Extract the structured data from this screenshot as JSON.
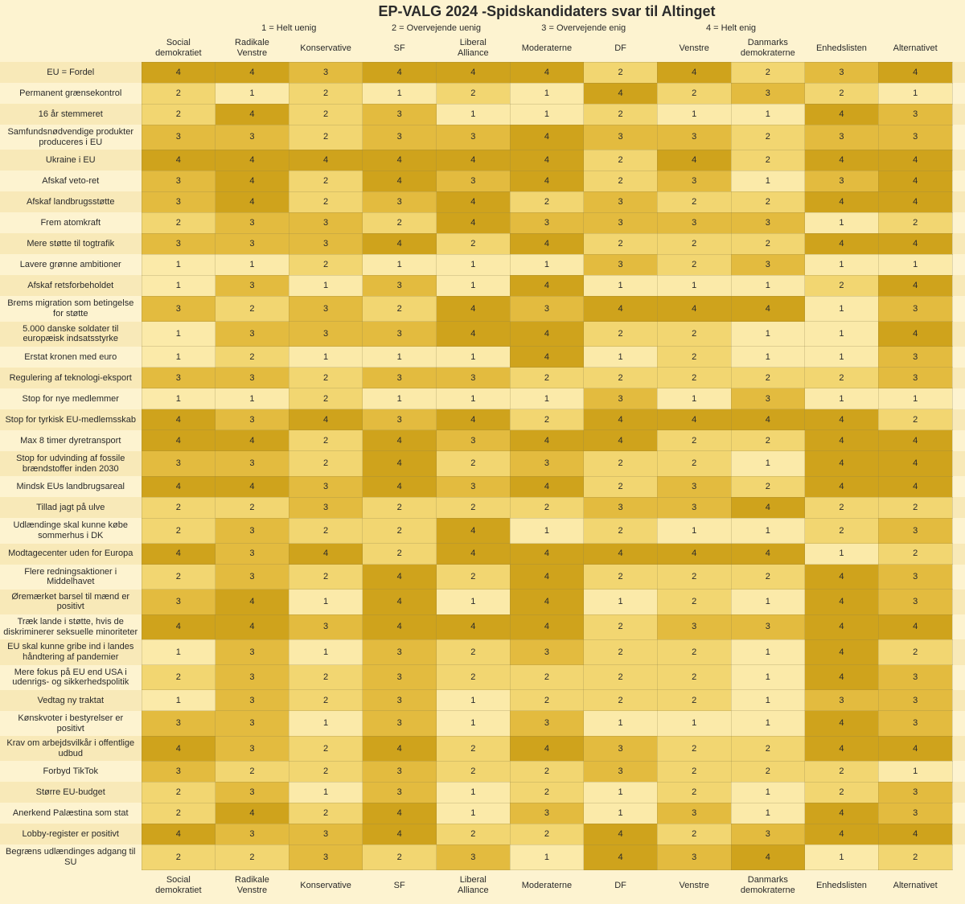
{
  "title": "EP-VALG 2024 -Spidskandidaters svar til Altinget",
  "scale_labels": {
    "s1": "1 = Helt uenig",
    "s2": "2 = Overvejende uenig",
    "s3": "3 = Overvejende enig",
    "s4": "4 = Helt enig"
  },
  "colors": {
    "background": "#fdf3d0",
    "heat": {
      "1": "#fbeaa9",
      "2": "#f2d671",
      "3": "#e3bb3f",
      "4": "#cfa31c"
    },
    "stripe_even": "#fdf3d0",
    "stripe_odd": "#f8e9b8",
    "border": "rgba(139,129,76,0.25)"
  },
  "parties": [
    "Social demokratiet",
    "Radikale Venstre",
    "Konservative",
    "SF",
    "Liberal Alliance",
    "Moderaterne",
    "DF",
    "Venstre",
    "Danmarks demokraterne",
    "Enhedslisten",
    "Alternativet"
  ],
  "questions": [
    {
      "label": "EU = Fordel",
      "v": [
        4,
        4,
        3,
        4,
        4,
        4,
        2,
        4,
        2,
        3,
        4
      ]
    },
    {
      "label": "Permanent grænsekontrol",
      "v": [
        2,
        1,
        2,
        1,
        2,
        1,
        4,
        2,
        3,
        2,
        1
      ]
    },
    {
      "label": "16 år stemmeret",
      "v": [
        2,
        4,
        2,
        3,
        1,
        1,
        2,
        1,
        1,
        4,
        3
      ]
    },
    {
      "label": "Samfundsnødvendige produkter produceres i EU",
      "v": [
        3,
        3,
        2,
        3,
        3,
        4,
        3,
        3,
        2,
        3,
        3
      ]
    },
    {
      "label": "Ukraine i EU",
      "v": [
        4,
        4,
        4,
        4,
        4,
        4,
        2,
        4,
        2,
        4,
        4
      ]
    },
    {
      "label": "Afskaf veto-ret",
      "v": [
        3,
        4,
        2,
        4,
        3,
        4,
        2,
        3,
        1,
        3,
        4
      ]
    },
    {
      "label": "Afskaf landbrugsstøtte",
      "v": [
        3,
        4,
        2,
        3,
        4,
        2,
        3,
        2,
        2,
        4,
        4
      ]
    },
    {
      "label": "Frem atomkraft",
      "v": [
        2,
        3,
        3,
        2,
        4,
        3,
        3,
        3,
        3,
        1,
        2
      ]
    },
    {
      "label": "Mere støtte til togtrafik",
      "v": [
        3,
        3,
        3,
        4,
        2,
        4,
        2,
        2,
        2,
        4,
        4
      ]
    },
    {
      "label": "Lavere grønne ambitioner",
      "v": [
        1,
        1,
        2,
        1,
        1,
        1,
        3,
        2,
        3,
        1,
        1
      ]
    },
    {
      "label": "Afskaf retsforbeholdet",
      "v": [
        1,
        3,
        1,
        3,
        1,
        4,
        1,
        1,
        1,
        2,
        4
      ]
    },
    {
      "label": "Brems migration som betingelse for støtte",
      "v": [
        3,
        2,
        3,
        2,
        4,
        3,
        4,
        4,
        4,
        1,
        3
      ]
    },
    {
      "label": "5.000 danske soldater til europæisk indsatsstyrke",
      "v": [
        1,
        3,
        3,
        3,
        4,
        4,
        2,
        2,
        1,
        1,
        4
      ]
    },
    {
      "label": "Erstat kronen med euro",
      "v": [
        1,
        2,
        1,
        1,
        1,
        4,
        1,
        2,
        1,
        1,
        3
      ]
    },
    {
      "label": "Regulering af teknologi-eksport",
      "v": [
        3,
        3,
        2,
        3,
        3,
        2,
        2,
        2,
        2,
        2,
        3
      ]
    },
    {
      "label": "Stop for nye medlemmer",
      "v": [
        1,
        1,
        2,
        1,
        1,
        1,
        3,
        1,
        3,
        1,
        1
      ]
    },
    {
      "label": "Stop for tyrkisk EU-medlemsskab",
      "v": [
        4,
        3,
        4,
        3,
        4,
        2,
        4,
        4,
        4,
        4,
        2
      ]
    },
    {
      "label": "Max 8 timer dyretransport",
      "v": [
        4,
        4,
        2,
        4,
        3,
        4,
        4,
        2,
        2,
        4,
        4
      ]
    },
    {
      "label": "Stop for udvinding af fossile brændstoffer inden 2030",
      "v": [
        3,
        3,
        2,
        4,
        2,
        3,
        2,
        2,
        1,
        4,
        4
      ]
    },
    {
      "label": "Mindsk EUs landbrugsareal",
      "v": [
        4,
        4,
        3,
        4,
        3,
        4,
        2,
        3,
        2,
        4,
        4
      ]
    },
    {
      "label": "Tillad jagt på ulve",
      "v": [
        2,
        2,
        3,
        2,
        2,
        2,
        3,
        3,
        4,
        2,
        2
      ]
    },
    {
      "label": "Udlændinge skal kunne købe sommerhus i DK",
      "v": [
        2,
        3,
        2,
        2,
        4,
        1,
        2,
        1,
        1,
        2,
        3
      ]
    },
    {
      "label": "Modtagecenter uden for Europa",
      "v": [
        4,
        3,
        4,
        2,
        4,
        4,
        4,
        4,
        4,
        1,
        2
      ]
    },
    {
      "label": "Flere redningsaktioner i Middelhavet",
      "v": [
        2,
        3,
        2,
        4,
        2,
        4,
        2,
        2,
        2,
        4,
        3
      ]
    },
    {
      "label": "Øremærket barsel til mænd er positivt",
      "v": [
        3,
        4,
        1,
        4,
        1,
        4,
        1,
        2,
        1,
        4,
        3
      ]
    },
    {
      "label": "Træk lande i støtte, hvis de diskriminerer seksuelle minoriteter",
      "v": [
        4,
        4,
        3,
        4,
        4,
        4,
        2,
        3,
        3,
        4,
        4
      ]
    },
    {
      "label": "EU skal kunne gribe ind i landes håndtering af pandemier",
      "v": [
        1,
        3,
        1,
        3,
        2,
        3,
        2,
        2,
        1,
        4,
        2
      ]
    },
    {
      "label": "Mere fokus på EU end USA i udenrigs- og sikkerhedspolitik",
      "v": [
        2,
        3,
        2,
        3,
        2,
        2,
        2,
        2,
        1,
        4,
        3
      ]
    },
    {
      "label": "Vedtag ny traktat",
      "v": [
        1,
        3,
        2,
        3,
        1,
        2,
        2,
        2,
        1,
        3,
        3
      ]
    },
    {
      "label": "Kønskvoter i bestyrelser er positivt",
      "v": [
        3,
        3,
        1,
        3,
        1,
        3,
        1,
        1,
        1,
        4,
        3
      ]
    },
    {
      "label": "Krav om arbejdsvilkår i offentlige udbud",
      "v": [
        4,
        3,
        2,
        4,
        2,
        4,
        3,
        2,
        2,
        4,
        4
      ]
    },
    {
      "label": "Forbyd TikTok",
      "v": [
        3,
        2,
        2,
        3,
        2,
        2,
        3,
        2,
        2,
        2,
        1
      ]
    },
    {
      "label": "Større EU-budget",
      "v": [
        2,
        3,
        1,
        3,
        1,
        2,
        1,
        2,
        1,
        2,
        3
      ]
    },
    {
      "label": "Anerkend Palæstina som stat",
      "v": [
        2,
        4,
        2,
        4,
        1,
        3,
        1,
        3,
        1,
        4,
        3
      ]
    },
    {
      "label": "Lobby-register er positivt",
      "v": [
        4,
        3,
        3,
        4,
        2,
        2,
        4,
        2,
        3,
        4,
        4
      ]
    },
    {
      "label": "Begræns udlændinges adgang til SU",
      "v": [
        2,
        2,
        3,
        2,
        3,
        1,
        4,
        3,
        4,
        1,
        2
      ]
    }
  ]
}
